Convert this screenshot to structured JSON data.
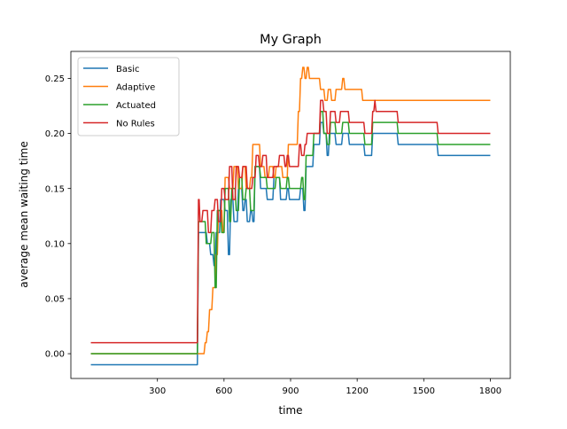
{
  "chart_data": {
    "type": "line",
    "title": "My Graph",
    "xlabel": "time",
    "ylabel": "average mean waiting time",
    "xlim": [
      -90,
      1890
    ],
    "ylim": [
      -0.0225,
      0.2745
    ],
    "xticks": [
      300,
      600,
      900,
      1200,
      1500,
      1800
    ],
    "xtick_labels": [
      "300",
      "600",
      "900",
      "1200",
      "1500",
      "1800"
    ],
    "yticks": [
      0.0,
      0.05,
      0.1,
      0.15,
      0.2,
      0.25
    ],
    "ytick_labels": [
      "0.00",
      "0.05",
      "0.10",
      "0.15",
      "0.20",
      "0.25"
    ],
    "grid": false,
    "legend_position": "top-left",
    "series": [
      {
        "name": "Basic",
        "color": "#1f77b4",
        "points": [
          [
            0,
            -0.01
          ],
          [
            480,
            -0.01
          ],
          [
            485,
            0.11
          ],
          [
            520,
            0.11
          ],
          [
            525,
            0.1
          ],
          [
            535,
            0.1
          ],
          [
            540,
            0.09
          ],
          [
            550,
            0.09
          ],
          [
            555,
            0.08
          ],
          [
            560,
            0.08
          ],
          [
            565,
            0.11
          ],
          [
            580,
            0.11
          ],
          [
            585,
            0.14
          ],
          [
            600,
            0.14
          ],
          [
            605,
            0.13
          ],
          [
            615,
            0.13
          ],
          [
            620,
            0.09
          ],
          [
            625,
            0.09
          ],
          [
            630,
            0.14
          ],
          [
            640,
            0.14
          ],
          [
            645,
            0.12
          ],
          [
            660,
            0.12
          ],
          [
            665,
            0.15
          ],
          [
            680,
            0.15
          ],
          [
            685,
            0.13
          ],
          [
            690,
            0.13
          ],
          [
            695,
            0.14
          ],
          [
            700,
            0.14
          ],
          [
            705,
            0.12
          ],
          [
            715,
            0.12
          ],
          [
            720,
            0.13
          ],
          [
            725,
            0.13
          ],
          [
            730,
            0.12
          ],
          [
            735,
            0.12
          ],
          [
            740,
            0.17
          ],
          [
            760,
            0.17
          ],
          [
            765,
            0.15
          ],
          [
            790,
            0.15
          ],
          [
            795,
            0.14
          ],
          [
            820,
            0.14
          ],
          [
            825,
            0.16
          ],
          [
            850,
            0.16
          ],
          [
            855,
            0.14
          ],
          [
            880,
            0.14
          ],
          [
            885,
            0.15
          ],
          [
            890,
            0.15
          ],
          [
            895,
            0.14
          ],
          [
            940,
            0.14
          ],
          [
            945,
            0.15
          ],
          [
            955,
            0.15
          ],
          [
            960,
            0.13
          ],
          [
            965,
            0.13
          ],
          [
            970,
            0.17
          ],
          [
            1000,
            0.17
          ],
          [
            1005,
            0.19
          ],
          [
            1030,
            0.19
          ],
          [
            1035,
            0.21
          ],
          [
            1045,
            0.21
          ],
          [
            1050,
            0.2
          ],
          [
            1060,
            0.2
          ],
          [
            1065,
            0.18
          ],
          [
            1070,
            0.18
          ],
          [
            1075,
            0.2
          ],
          [
            1100,
            0.2
          ],
          [
            1105,
            0.19
          ],
          [
            1130,
            0.19
          ],
          [
            1135,
            0.2
          ],
          [
            1160,
            0.2
          ],
          [
            1165,
            0.19
          ],
          [
            1230,
            0.19
          ],
          [
            1235,
            0.18
          ],
          [
            1265,
            0.18
          ],
          [
            1270,
            0.2
          ],
          [
            1380,
            0.2
          ],
          [
            1385,
            0.19
          ],
          [
            1560,
            0.19
          ],
          [
            1565,
            0.18
          ],
          [
            1800,
            0.18
          ]
        ]
      },
      {
        "name": "Adaptive",
        "color": "#ff7f0e",
        "points": [
          [
            0,
            0.0
          ],
          [
            510,
            0.0
          ],
          [
            515,
            0.01
          ],
          [
            520,
            0.01
          ],
          [
            525,
            0.02
          ],
          [
            530,
            0.02
          ],
          [
            535,
            0.04
          ],
          [
            545,
            0.04
          ],
          [
            550,
            0.06
          ],
          [
            560,
            0.06
          ],
          [
            565,
            0.09
          ],
          [
            570,
            0.09
          ],
          [
            575,
            0.13
          ],
          [
            590,
            0.13
          ],
          [
            595,
            0.11
          ],
          [
            600,
            0.11
          ],
          [
            605,
            0.16
          ],
          [
            620,
            0.16
          ],
          [
            625,
            0.15
          ],
          [
            640,
            0.15
          ],
          [
            645,
            0.17
          ],
          [
            660,
            0.17
          ],
          [
            665,
            0.15
          ],
          [
            680,
            0.15
          ],
          [
            685,
            0.17
          ],
          [
            695,
            0.17
          ],
          [
            700,
            0.15
          ],
          [
            715,
            0.15
          ],
          [
            720,
            0.16
          ],
          [
            725,
            0.16
          ],
          [
            730,
            0.19
          ],
          [
            760,
            0.19
          ],
          [
            765,
            0.17
          ],
          [
            780,
            0.17
          ],
          [
            785,
            0.16
          ],
          [
            800,
            0.16
          ],
          [
            805,
            0.17
          ],
          [
            820,
            0.17
          ],
          [
            825,
            0.16
          ],
          [
            830,
            0.16
          ],
          [
            835,
            0.17
          ],
          [
            860,
            0.17
          ],
          [
            865,
            0.16
          ],
          [
            885,
            0.16
          ],
          [
            890,
            0.19
          ],
          [
            930,
            0.19
          ],
          [
            935,
            0.22
          ],
          [
            940,
            0.22
          ],
          [
            945,
            0.25
          ],
          [
            950,
            0.25
          ],
          [
            955,
            0.26
          ],
          [
            960,
            0.26
          ],
          [
            965,
            0.25
          ],
          [
            970,
            0.25
          ],
          [
            975,
            0.26
          ],
          [
            980,
            0.26
          ],
          [
            985,
            0.25
          ],
          [
            1030,
            0.25
          ],
          [
            1035,
            0.24
          ],
          [
            1050,
            0.24
          ],
          [
            1055,
            0.23
          ],
          [
            1065,
            0.23
          ],
          [
            1070,
            0.24
          ],
          [
            1080,
            0.24
          ],
          [
            1085,
            0.23
          ],
          [
            1100,
            0.23
          ],
          [
            1105,
            0.24
          ],
          [
            1130,
            0.24
          ],
          [
            1135,
            0.25
          ],
          [
            1140,
            0.25
          ],
          [
            1145,
            0.24
          ],
          [
            1220,
            0.24
          ],
          [
            1225,
            0.23
          ],
          [
            1800,
            0.23
          ]
        ]
      },
      {
        "name": "Actuated",
        "color": "#2ca02c",
        "points": [
          [
            0,
            0.0
          ],
          [
            480,
            0.0
          ],
          [
            485,
            0.12
          ],
          [
            515,
            0.12
          ],
          [
            520,
            0.1
          ],
          [
            540,
            0.1
          ],
          [
            545,
            0.11
          ],
          [
            555,
            0.11
          ],
          [
            560,
            0.06
          ],
          [
            565,
            0.06
          ],
          [
            570,
            0.13
          ],
          [
            585,
            0.13
          ],
          [
            590,
            0.11
          ],
          [
            600,
            0.11
          ],
          [
            605,
            0.15
          ],
          [
            620,
            0.15
          ],
          [
            625,
            0.12
          ],
          [
            630,
            0.12
          ],
          [
            635,
            0.15
          ],
          [
            650,
            0.15
          ],
          [
            655,
            0.13
          ],
          [
            665,
            0.13
          ],
          [
            670,
            0.16
          ],
          [
            680,
            0.16
          ],
          [
            685,
            0.14
          ],
          [
            695,
            0.14
          ],
          [
            700,
            0.15
          ],
          [
            715,
            0.15
          ],
          [
            720,
            0.13
          ],
          [
            735,
            0.13
          ],
          [
            740,
            0.17
          ],
          [
            760,
            0.17
          ],
          [
            765,
            0.16
          ],
          [
            790,
            0.16
          ],
          [
            795,
            0.15
          ],
          [
            830,
            0.15
          ],
          [
            835,
            0.16
          ],
          [
            850,
            0.16
          ],
          [
            855,
            0.15
          ],
          [
            880,
            0.15
          ],
          [
            885,
            0.16
          ],
          [
            890,
            0.16
          ],
          [
            895,
            0.15
          ],
          [
            945,
            0.15
          ],
          [
            950,
            0.16
          ],
          [
            955,
            0.16
          ],
          [
            960,
            0.14
          ],
          [
            965,
            0.14
          ],
          [
            970,
            0.18
          ],
          [
            1000,
            0.18
          ],
          [
            1005,
            0.2
          ],
          [
            1030,
            0.2
          ],
          [
            1035,
            0.22
          ],
          [
            1045,
            0.22
          ],
          [
            1050,
            0.2
          ],
          [
            1060,
            0.2
          ],
          [
            1065,
            0.19
          ],
          [
            1075,
            0.19
          ],
          [
            1080,
            0.21
          ],
          [
            1100,
            0.21
          ],
          [
            1105,
            0.2
          ],
          [
            1130,
            0.2
          ],
          [
            1135,
            0.21
          ],
          [
            1160,
            0.21
          ],
          [
            1165,
            0.2
          ],
          [
            1230,
            0.2
          ],
          [
            1235,
            0.19
          ],
          [
            1265,
            0.19
          ],
          [
            1270,
            0.21
          ],
          [
            1380,
            0.21
          ],
          [
            1385,
            0.2
          ],
          [
            1560,
            0.2
          ],
          [
            1565,
            0.19
          ],
          [
            1800,
            0.19
          ]
        ]
      },
      {
        "name": "No Rules",
        "color": "#d62728",
        "points": [
          [
            0,
            0.01
          ],
          [
            480,
            0.01
          ],
          [
            485,
            0.14
          ],
          [
            488,
            0.14
          ],
          [
            492,
            0.12
          ],
          [
            500,
            0.12
          ],
          [
            505,
            0.13
          ],
          [
            525,
            0.13
          ],
          [
            530,
            0.11
          ],
          [
            540,
            0.11
          ],
          [
            545,
            0.13
          ],
          [
            555,
            0.13
          ],
          [
            560,
            0.14
          ],
          [
            570,
            0.14
          ],
          [
            575,
            0.12
          ],
          [
            585,
            0.12
          ],
          [
            590,
            0.15
          ],
          [
            600,
            0.15
          ],
          [
            605,
            0.14
          ],
          [
            620,
            0.14
          ],
          [
            625,
            0.17
          ],
          [
            635,
            0.17
          ],
          [
            640,
            0.14
          ],
          [
            650,
            0.14
          ],
          [
            655,
            0.17
          ],
          [
            665,
            0.17
          ],
          [
            670,
            0.16
          ],
          [
            680,
            0.16
          ],
          [
            685,
            0.17
          ],
          [
            700,
            0.17
          ],
          [
            705,
            0.15
          ],
          [
            725,
            0.15
          ],
          [
            730,
            0.16
          ],
          [
            740,
            0.16
          ],
          [
            745,
            0.18
          ],
          [
            755,
            0.18
          ],
          [
            760,
            0.17
          ],
          [
            770,
            0.17
          ],
          [
            775,
            0.18
          ],
          [
            790,
            0.18
          ],
          [
            795,
            0.16
          ],
          [
            820,
            0.16
          ],
          [
            825,
            0.17
          ],
          [
            845,
            0.17
          ],
          [
            850,
            0.18
          ],
          [
            870,
            0.18
          ],
          [
            875,
            0.17
          ],
          [
            880,
            0.17
          ],
          [
            885,
            0.18
          ],
          [
            890,
            0.18
          ],
          [
            895,
            0.17
          ],
          [
            935,
            0.17
          ],
          [
            940,
            0.19
          ],
          [
            945,
            0.19
          ],
          [
            950,
            0.18
          ],
          [
            960,
            0.18
          ],
          [
            965,
            0.19
          ],
          [
            970,
            0.19
          ],
          [
            975,
            0.2
          ],
          [
            1030,
            0.2
          ],
          [
            1035,
            0.23
          ],
          [
            1045,
            0.23
          ],
          [
            1050,
            0.22
          ],
          [
            1060,
            0.22
          ],
          [
            1065,
            0.2
          ],
          [
            1075,
            0.2
          ],
          [
            1080,
            0.22
          ],
          [
            1100,
            0.22
          ],
          [
            1105,
            0.21
          ],
          [
            1120,
            0.21
          ],
          [
            1125,
            0.22
          ],
          [
            1160,
            0.22
          ],
          [
            1165,
            0.21
          ],
          [
            1230,
            0.21
          ],
          [
            1235,
            0.2
          ],
          [
            1265,
            0.2
          ],
          [
            1270,
            0.22
          ],
          [
            1275,
            0.22
          ],
          [
            1280,
            0.23
          ],
          [
            1285,
            0.22
          ],
          [
            1380,
            0.22
          ],
          [
            1385,
            0.21
          ],
          [
            1560,
            0.21
          ],
          [
            1565,
            0.2
          ],
          [
            1800,
            0.2
          ]
        ]
      }
    ]
  }
}
